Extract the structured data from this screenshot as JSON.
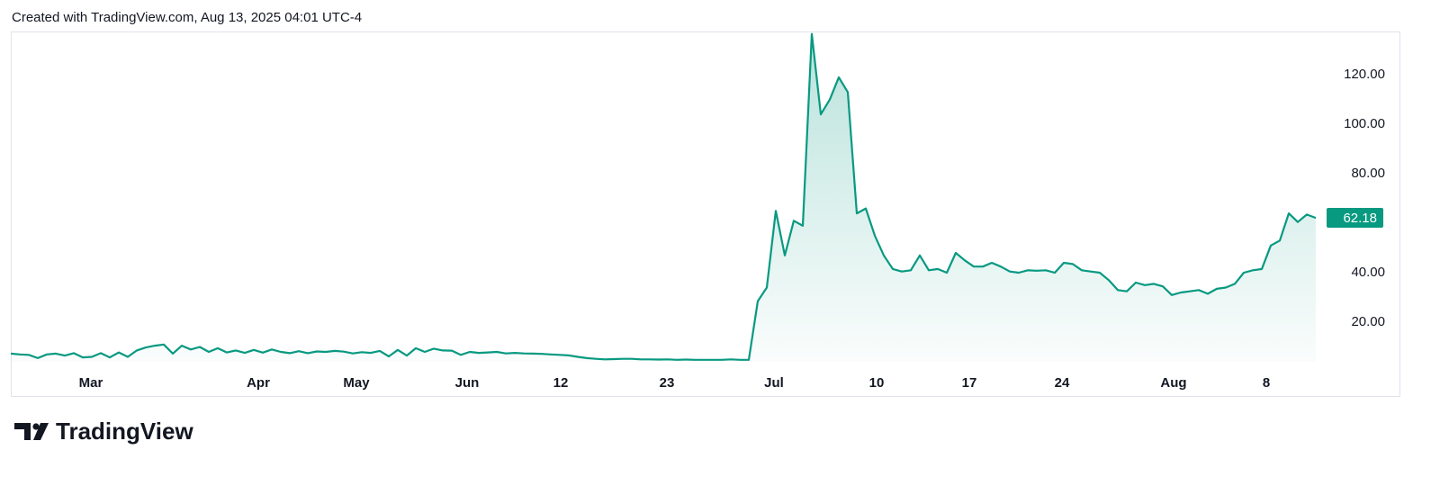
{
  "chart_data": {
    "type": "line",
    "title": "Created with TradingView.com, Aug 13, 2025 04:01 UTC-4",
    "source": "TradingView",
    "color": "#089981",
    "values": [
      7.3,
      7.0,
      6.8,
      5.5,
      7.0,
      7.3,
      6.5,
      7.5,
      5.8,
      6.0,
      7.5,
      5.8,
      7.8,
      6.0,
      8.6,
      9.8,
      10.5,
      11.0,
      7.3,
      10.5,
      9.0,
      10.0,
      8.0,
      9.5,
      7.8,
      8.6,
      7.6,
      8.8,
      7.7,
      9.0,
      8.0,
      7.5,
      8.3,
      7.5,
      8.2,
      8.0,
      8.4,
      8.1,
      7.4,
      7.9,
      7.6,
      8.4,
      6.2,
      8.8,
      6.5,
      9.5,
      8.0,
      9.3,
      8.6,
      8.5,
      6.8,
      8.0,
      7.6,
      7.8,
      8.0,
      7.4,
      7.6,
      7.4,
      7.3,
      7.2,
      7.0,
      6.8,
      6.6,
      6.0,
      5.5,
      5.2,
      5.0,
      5.1,
      5.2,
      5.2,
      5.0,
      5.0,
      4.9,
      5.0,
      4.8,
      4.9,
      4.8,
      4.8,
      4.8,
      4.8,
      5.0,
      4.8,
      4.8,
      28.5,
      34,
      65,
      47,
      61,
      59,
      136.5,
      104,
      110,
      119,
      113,
      64,
      66,
      55,
      47,
      41.5,
      40.5,
      41,
      47,
      41,
      41.5,
      40,
      48,
      45,
      42.5,
      42.5,
      44,
      42.5,
      40.5,
      40,
      41,
      40.8,
      41,
      40,
      44,
      43.5,
      41,
      40.5,
      40,
      37,
      33,
      32.5,
      36,
      35,
      35.5,
      34.5,
      31,
      32,
      32.5,
      33,
      31.5,
      33.5,
      34,
      35.5,
      40,
      41,
      41.5,
      51,
      53,
      64,
      60.5,
      63.5,
      62.18
    ],
    "xlim": [
      0,
      145
    ],
    "xticks": [
      {
        "value": 8.9,
        "label": "Mar"
      },
      {
        "value": 27.5,
        "label": "Apr"
      },
      {
        "value": 38.4,
        "label": "May"
      },
      {
        "value": 50.7,
        "label": "Jun"
      },
      {
        "value": 61.1,
        "label": "12"
      },
      {
        "value": 72.9,
        "label": "23"
      },
      {
        "value": 84.8,
        "label": "Jul"
      },
      {
        "value": 96.2,
        "label": "10"
      },
      {
        "value": 106.5,
        "label": "17"
      },
      {
        "value": 116.8,
        "label": "24"
      },
      {
        "value": 129.2,
        "label": "Aug"
      },
      {
        "value": 139.5,
        "label": "8"
      }
    ],
    "ylim": [
      4,
      137.5
    ],
    "yticks": [
      {
        "value": 20,
        "label": "20.00"
      },
      {
        "value": 40,
        "label": "40.00"
      },
      {
        "value": 80,
        "label": "80.00"
      },
      {
        "value": 100,
        "label": "100.00"
      },
      {
        "value": 120,
        "label": "120.00"
      }
    ]
  }
}
